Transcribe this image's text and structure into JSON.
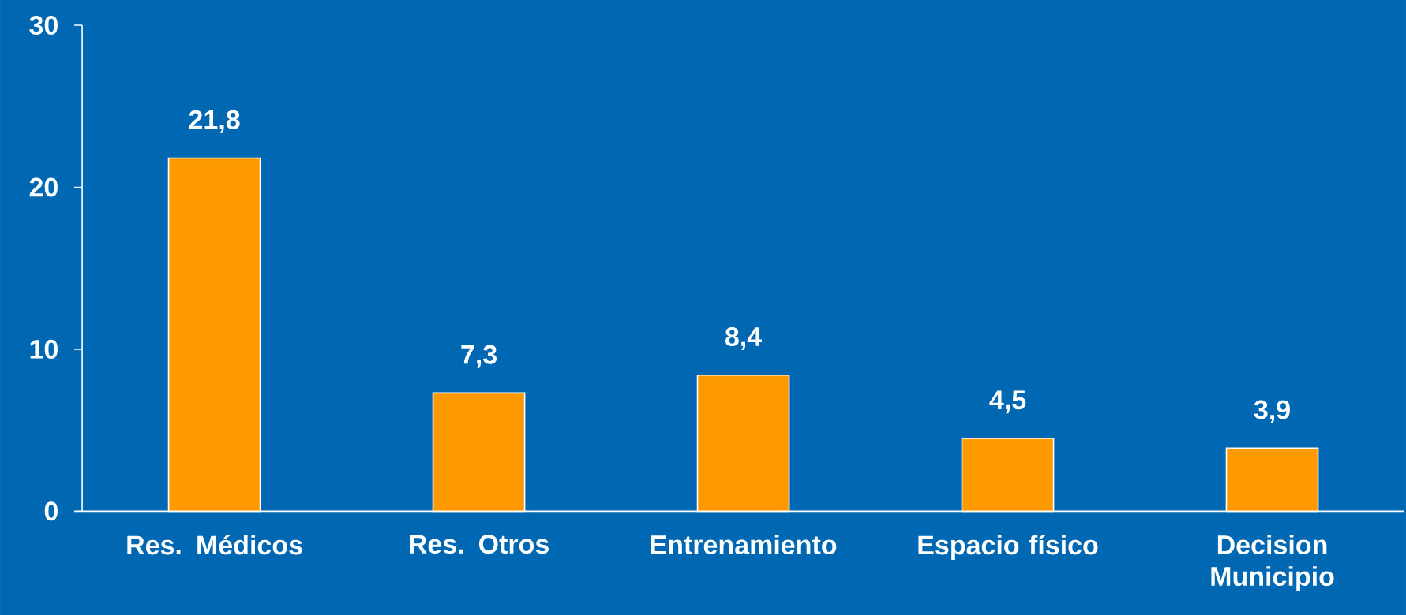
{
  "chart_data": {
    "type": "bar",
    "categories": [
      "Res. Médicos",
      "Res. Otros",
      "Entrenamiento",
      "Espacio físico",
      "Decision Municipio"
    ],
    "values": [
      21.8,
      7.3,
      8.4,
      4.5,
      3.9
    ],
    "value_labels": [
      "21,8",
      "7,3",
      "8,4",
      "4,5",
      "3,9"
    ],
    "color": "#ff9900",
    "ylim": [
      0,
      30
    ],
    "yticks": [
      0,
      10,
      20,
      30
    ]
  }
}
